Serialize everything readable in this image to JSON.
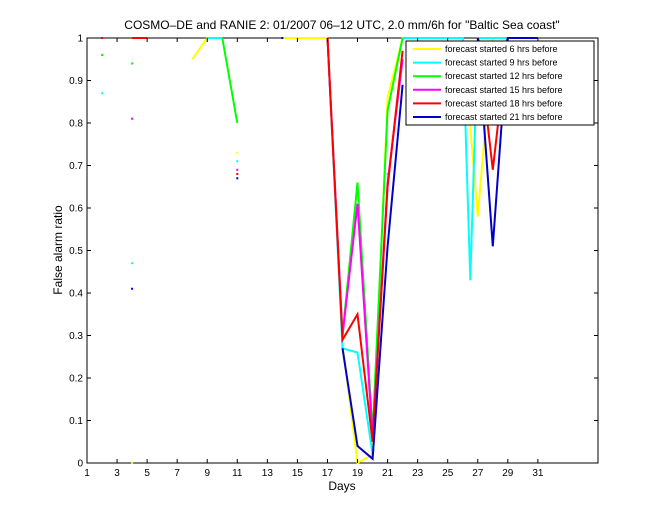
{
  "chart_data": {
    "type": "line",
    "title": "COSMO–DE and RANIE 2: 01/2007 06–12 UTC, 2.0 mm/6h for \"Baltic Sea coast\"",
    "xlabel": "Days",
    "ylabel": "False alarm ratio",
    "xlim": [
      1,
      35
    ],
    "ylim": [
      0,
      1
    ],
    "xticks": [
      1,
      3,
      5,
      7,
      9,
      11,
      13,
      15,
      17,
      19,
      21,
      23,
      25,
      27,
      29,
      31
    ],
    "yticks": [
      0,
      0.1,
      0.2,
      0.3,
      0.4,
      0.5,
      0.6,
      0.7,
      0.8,
      0.9,
      1
    ],
    "ytick_labels": [
      "0",
      "0.1",
      "0.2",
      "0.3",
      "0.4",
      "0.5",
      "0.6",
      "0.7",
      "0.8",
      "0.9",
      "1"
    ],
    "grid": false,
    "legend_position": "top-right",
    "series": [
      {
        "name": "forecast started 6 hrs before",
        "color": "#ffff00",
        "points": [
          [
            4,
            0.0
          ],
          [
            8,
            0.95
          ],
          [
            9,
            1.0
          ],
          [
            11,
            0.73
          ],
          [
            14,
            1.0
          ],
          [
            17,
            1.0
          ],
          [
            18,
            0.28
          ],
          [
            19,
            0.0
          ],
          [
            20,
            0.02
          ],
          [
            21,
            0.86
          ],
          [
            22,
            1.0
          ],
          [
            26,
            1.0
          ],
          [
            27,
            0.58
          ],
          [
            28,
            1.0
          ],
          [
            29,
            1.0
          ],
          [
            30,
            1.0
          ],
          [
            31,
            1.0
          ]
        ],
        "segment_breaks_after": [
          0,
          2,
          3,
          5
        ]
      },
      {
        "name": "forecast started 9 hrs before",
        "color": "#00ffff",
        "points": [
          [
            2,
            0.87
          ],
          [
            4,
            0.47
          ],
          [
            9,
            1.0
          ],
          [
            10,
            1.0
          ],
          [
            11,
            0.71
          ],
          [
            14,
            1.0
          ],
          [
            17,
            1.0
          ],
          [
            18,
            0.27
          ],
          [
            19,
            0.26
          ],
          [
            20,
            0.02
          ],
          [
            21,
            0.68
          ],
          [
            22,
            1.0
          ],
          [
            25,
            1.0
          ],
          [
            26,
            1.0
          ],
          [
            26.5,
            0.43
          ],
          [
            27,
            1.0
          ],
          [
            28,
            1.0
          ],
          [
            29,
            1.0
          ],
          [
            30,
            1.0
          ],
          [
            31,
            1.0
          ]
        ],
        "segment_breaks_after": [
          0,
          1,
          3,
          4,
          5,
          9,
          10
        ]
      },
      {
        "name": "forecast started 12 hrs before",
        "color": "#00ff00",
        "points": [
          [
            2,
            0.96
          ],
          [
            4,
            0.94
          ],
          [
            10,
            1.0
          ],
          [
            11,
            0.8
          ],
          [
            17,
            1.0
          ],
          [
            18,
            0.3
          ],
          [
            19,
            0.66
          ],
          [
            20,
            0.07
          ],
          [
            21,
            0.83
          ],
          [
            22,
            1.0
          ],
          [
            27,
            1.0
          ],
          [
            28,
            0.93
          ],
          [
            29,
            1.0
          ],
          [
            30,
            1.0
          ],
          [
            31,
            1.0
          ]
        ],
        "segment_breaks_after": [
          0,
          1,
          3,
          9
        ]
      },
      {
        "name": "forecast started 15 hrs before",
        "color": "#ff00ff",
        "points": [
          [
            2,
            1.0
          ],
          [
            4,
            0.81
          ],
          [
            11,
            0.69
          ],
          [
            17,
            1.0
          ],
          [
            18,
            0.3
          ],
          [
            19,
            0.61
          ],
          [
            20,
            0.06
          ],
          [
            21,
            0.66
          ],
          [
            22,
            0.95
          ],
          [
            27,
            1.0
          ],
          [
            28,
            0.86
          ],
          [
            29,
            1.0
          ],
          [
            30,
            1.0
          ],
          [
            31,
            1.0
          ]
        ],
        "segment_breaks_after": [
          0,
          1,
          2,
          8
        ]
      },
      {
        "name": "forecast started 18 hrs before",
        "color": "#ff0000",
        "points": [
          [
            2,
            1.0
          ],
          [
            4,
            1.0
          ],
          [
            5,
            1.0
          ],
          [
            11,
            0.68
          ],
          [
            17,
            1.0
          ],
          [
            18,
            0.29
          ],
          [
            19,
            0.35
          ],
          [
            20,
            0.05
          ],
          [
            21,
            0.65
          ],
          [
            22,
            0.97
          ],
          [
            27,
            1.0
          ],
          [
            28,
            0.69
          ],
          [
            29,
            1.0
          ],
          [
            30,
            1.0
          ],
          [
            31,
            1.0
          ]
        ],
        "segment_breaks_after": [
          0,
          2,
          3,
          9
        ]
      },
      {
        "name": "forecast started 21 hrs before",
        "color": "#0000c8",
        "points": [
          [
            4,
            0.41
          ],
          [
            11,
            0.67
          ],
          [
            14,
            1.0
          ],
          [
            18,
            0.27
          ],
          [
            19,
            0.04
          ],
          [
            20,
            0.01
          ],
          [
            21,
            0.51
          ],
          [
            22,
            0.89
          ],
          [
            27,
            1.0
          ],
          [
            28,
            0.51
          ],
          [
            29,
            1.0
          ],
          [
            30,
            1.0
          ],
          [
            31,
            1.0
          ]
        ],
        "segment_breaks_after": [
          0,
          1,
          2,
          7
        ]
      }
    ]
  }
}
